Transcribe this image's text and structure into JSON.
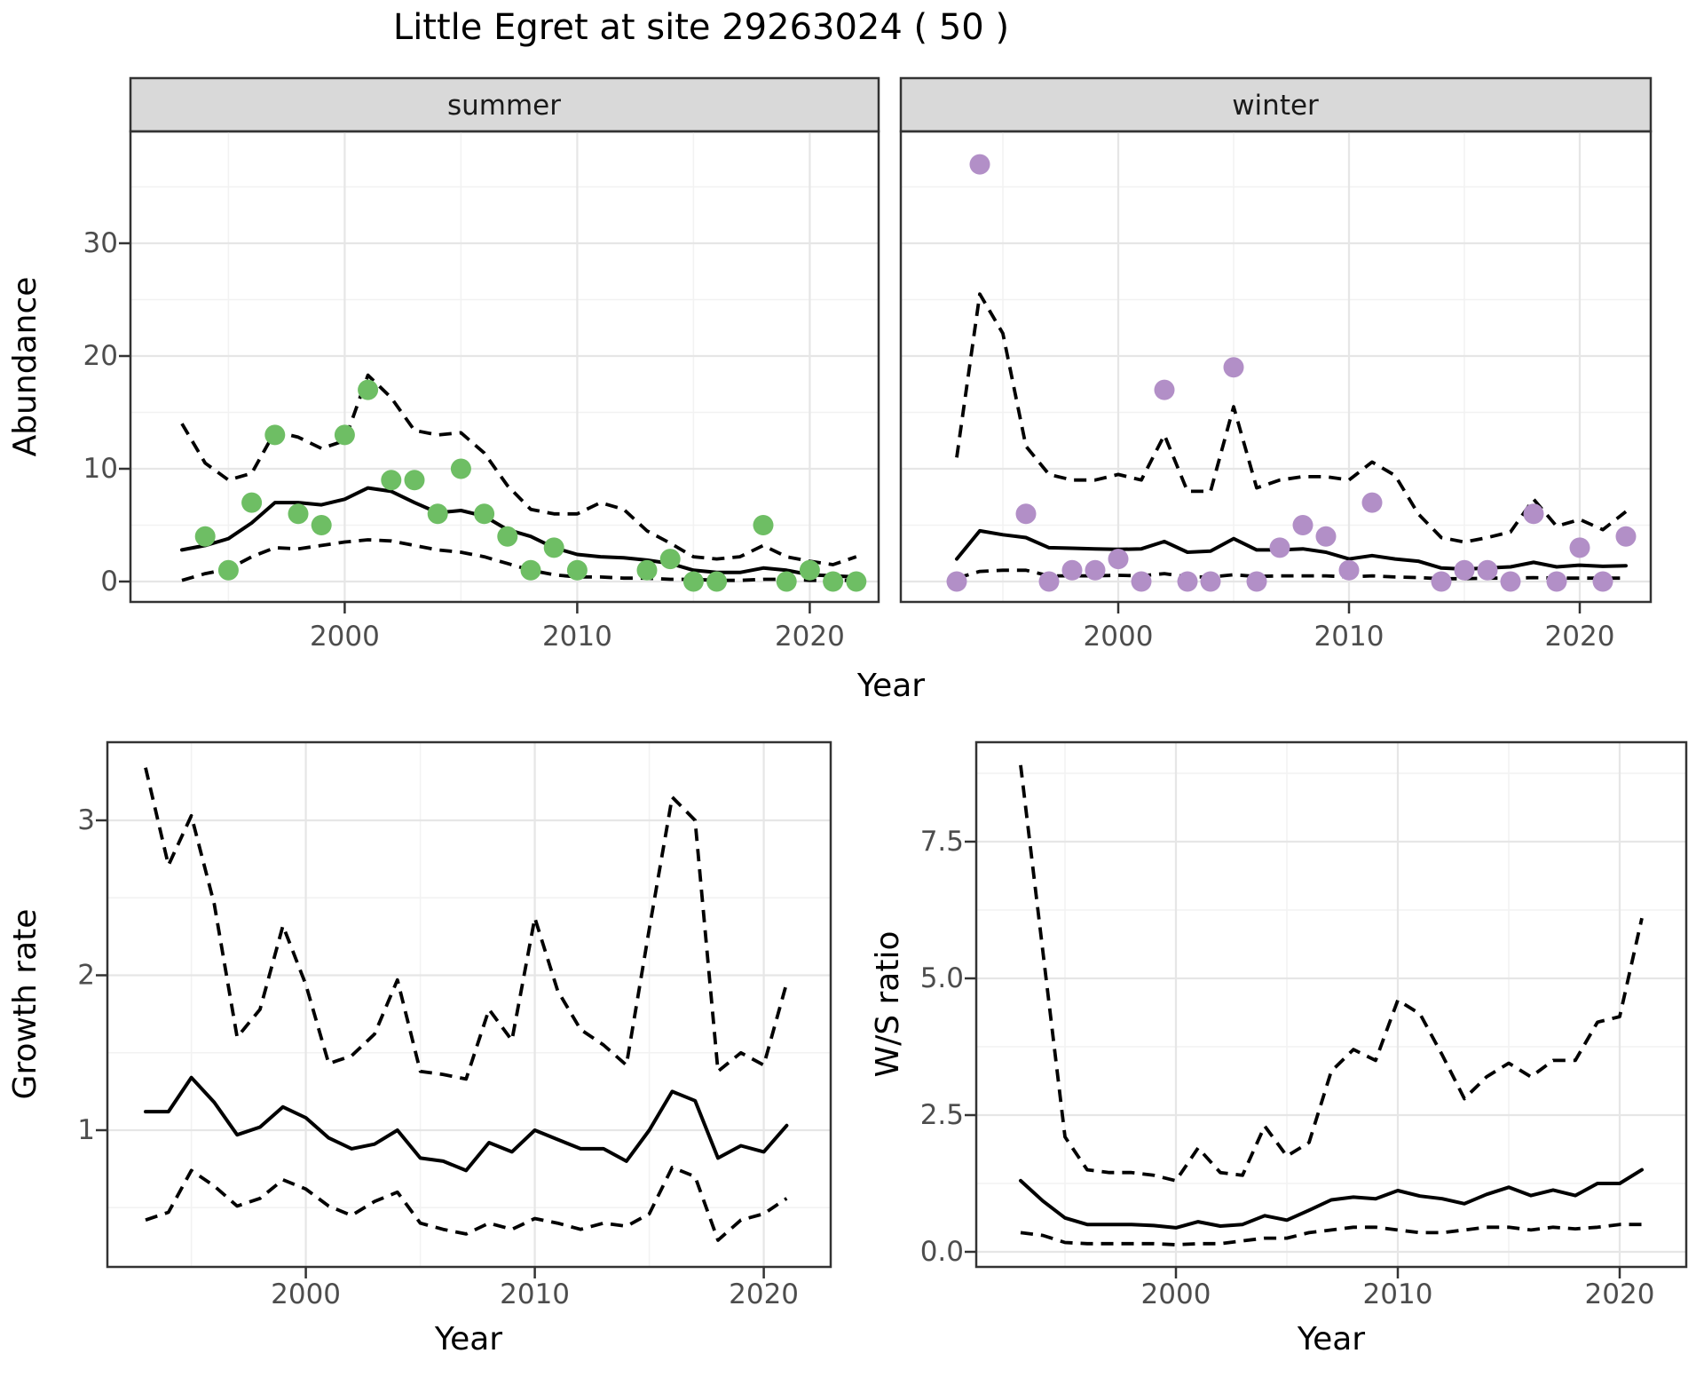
{
  "title": "Little Egret at site 29263024 ( 50 )",
  "colors": {
    "summer_point": "#6ebe64",
    "winter_point": "#b28fc7",
    "fit_line": "#000000",
    "ci_line": "#000000",
    "strip_bg": "#d9d9d9",
    "grid_major": "#e6e6e6",
    "grid_minor": "#f2f2f2",
    "panel_border": "#333333",
    "tick_label": "#4d4d4d"
  },
  "chart_data": [
    {
      "id": "abundance-summer",
      "type": "scatter",
      "facet_label": "summer",
      "xlabel": "Year",
      "ylabel": "Abundance",
      "x_ticks": [
        2000,
        2010,
        2020
      ],
      "x_minor": [
        1995,
        2005,
        2015
      ],
      "y_tick_values": [
        0,
        10,
        20,
        30
      ],
      "y_tick_labels": [
        "0",
        "10",
        "20",
        "30"
      ],
      "y_minor": [
        5,
        15,
        25,
        35
      ],
      "xlim": [
        1990.8,
        2023.0
      ],
      "ylim": [
        -1.8,
        39.9
      ],
      "grid": true,
      "legend": "none",
      "points": {
        "years": [
          1994,
          1995,
          1996,
          1997,
          1998,
          1999,
          2000,
          2001,
          2002,
          2003,
          2004,
          2005,
          2006,
          2007,
          2008,
          2009,
          2010,
          2013,
          2014,
          2015,
          2016,
          2018,
          2019,
          2020,
          2021,
          2022
        ],
        "values": [
          4,
          1,
          7,
          13,
          6,
          5,
          13,
          17,
          9,
          9,
          6,
          10,
          6,
          4,
          1,
          3,
          1,
          1,
          2,
          0,
          0,
          5,
          0,
          1,
          0,
          0
        ]
      },
      "series": [
        {
          "name": "fit",
          "style": "solid",
          "year_start": 1993,
          "values": [
            2.8,
            3.2,
            3.8,
            5.2,
            7.0,
            7.0,
            6.8,
            7.3,
            8.3,
            8.0,
            7.0,
            6.1,
            6.3,
            5.8,
            4.6,
            4.0,
            3.0,
            2.4,
            2.2,
            2.1,
            1.9,
            1.6,
            1.0,
            0.8,
            0.8,
            1.2,
            1.0,
            0.6,
            0.5,
            0.4
          ]
        },
        {
          "name": "upper-ci",
          "style": "dashed",
          "year_start": 1993,
          "values": [
            14.0,
            10.5,
            9.0,
            9.6,
            13.3,
            12.8,
            11.8,
            12.5,
            18.3,
            16.3,
            13.4,
            13.0,
            13.2,
            11.4,
            8.5,
            6.4,
            6.0,
            6.0,
            7.0,
            6.4,
            4.5,
            3.4,
            2.2,
            2.0,
            2.2,
            3.2,
            2.2,
            1.8,
            1.5,
            2.2
          ]
        },
        {
          "name": "lower-ci",
          "style": "dashed",
          "year_start": 1993,
          "values": [
            0.1,
            0.7,
            1.1,
            2.2,
            3.0,
            2.9,
            3.2,
            3.5,
            3.7,
            3.6,
            3.2,
            2.8,
            2.6,
            2.2,
            1.6,
            1.0,
            0.6,
            0.4,
            0.4,
            0.3,
            0.3,
            0.2,
            0.2,
            0.1,
            0.1,
            0.2,
            0.2,
            0.1,
            0.1,
            0.1
          ]
        }
      ]
    },
    {
      "id": "abundance-winter",
      "type": "scatter",
      "facet_label": "winter",
      "xlabel": "Year",
      "ylabel": "Abundance",
      "x_ticks": [
        2000,
        2010,
        2020
      ],
      "x_minor": [
        1995,
        2005,
        2015
      ],
      "y_tick_values": [
        0,
        10,
        20,
        30
      ],
      "y_tick_labels": [
        "0",
        "10",
        "20",
        "30"
      ],
      "y_minor": [
        5,
        15,
        25,
        35
      ],
      "xlim": [
        1990.6,
        2023.1
      ],
      "ylim": [
        -1.8,
        39.9
      ],
      "grid": true,
      "legend": "none",
      "points": {
        "years": [
          1993,
          1994,
          1996,
          1997,
          1998,
          1999,
          2000,
          2001,
          2002,
          2003,
          2004,
          2005,
          2006,
          2007,
          2008,
          2009,
          2010,
          2011,
          2014,
          2015,
          2016,
          2017,
          2018,
          2019,
          2020,
          2021,
          2022
        ],
        "values": [
          0,
          37,
          6,
          0,
          1,
          1,
          2,
          0,
          17,
          0,
          0,
          19,
          0,
          3,
          5,
          4,
          1,
          7,
          0,
          1,
          1,
          0,
          6,
          0,
          3,
          0,
          4
        ]
      },
      "series": [
        {
          "name": "fit",
          "style": "solid",
          "year_start": 1993,
          "values": [
            2.0,
            4.5,
            4.15,
            3.9,
            3.0,
            2.95,
            2.9,
            2.85,
            2.9,
            3.55,
            2.6,
            2.7,
            3.8,
            2.8,
            2.8,
            2.9,
            2.6,
            2.0,
            2.3,
            2.0,
            1.8,
            1.2,
            1.1,
            1.2,
            1.3,
            1.7,
            1.3,
            1.45,
            1.35,
            1.4
          ]
        },
        {
          "name": "upper-ci",
          "style": "dashed",
          "year_start": 1993,
          "values": [
            11.0,
            25.5,
            22.0,
            12.0,
            9.5,
            9.0,
            9.0,
            9.5,
            9.0,
            13.0,
            8.0,
            8.0,
            15.5,
            8.3,
            9.0,
            9.3,
            9.3,
            9.0,
            10.6,
            9.4,
            6.0,
            3.9,
            3.5,
            3.9,
            4.4,
            7.3,
            4.9,
            5.5,
            4.6,
            6.2
          ]
        },
        {
          "name": "lower-ci",
          "style": "dashed",
          "year_start": 1993,
          "values": [
            0.3,
            0.9,
            1.0,
            1.0,
            0.5,
            0.5,
            0.5,
            0.55,
            0.5,
            0.7,
            0.4,
            0.4,
            0.6,
            0.45,
            0.5,
            0.5,
            0.5,
            0.4,
            0.5,
            0.4,
            0.35,
            0.25,
            0.25,
            0.3,
            0.3,
            0.35,
            0.3,
            0.3,
            0.3,
            0.3
          ]
        }
      ]
    },
    {
      "id": "growth-rate",
      "type": "line",
      "facet_label": "",
      "xlabel": "Year",
      "ylabel": "Growth rate",
      "x_ticks": [
        2000,
        2010,
        2020
      ],
      "x_minor": [
        1995,
        2005,
        2015
      ],
      "y_tick_values": [
        1,
        2,
        3
      ],
      "y_tick_labels": [
        "1",
        "2",
        "3"
      ],
      "y_minor": [
        0.5,
        1.5,
        2.5,
        3.5
      ],
      "xlim": [
        1991.3,
        2022.9
      ],
      "ylim": [
        0.12,
        3.5
      ],
      "grid": true,
      "legend": "none",
      "series": [
        {
          "name": "fit",
          "style": "solid",
          "year_start": 1993,
          "values": [
            1.12,
            1.12,
            1.34,
            1.18,
            0.97,
            1.02,
            1.15,
            1.08,
            0.95,
            0.88,
            0.91,
            1.0,
            0.82,
            0.8,
            0.74,
            0.92,
            0.86,
            1.0,
            0.94,
            0.88,
            0.88,
            0.8,
            1.0,
            1.25,
            1.19,
            0.82,
            0.9,
            0.86,
            1.03
          ]
        },
        {
          "name": "upper-ci",
          "style": "dashed",
          "year_start": 1993,
          "values": [
            3.34,
            2.71,
            3.03,
            2.46,
            1.6,
            1.78,
            2.32,
            1.94,
            1.43,
            1.48,
            1.62,
            1.97,
            1.38,
            1.36,
            1.33,
            1.78,
            1.58,
            2.37,
            1.9,
            1.65,
            1.55,
            1.42,
            2.3,
            3.15,
            3.0,
            1.38,
            1.5,
            1.42,
            1.95
          ]
        },
        {
          "name": "lower-ci",
          "style": "dashed",
          "year_start": 1993,
          "values": [
            0.42,
            0.47,
            0.74,
            0.64,
            0.51,
            0.56,
            0.68,
            0.62,
            0.51,
            0.45,
            0.54,
            0.6,
            0.4,
            0.36,
            0.33,
            0.4,
            0.36,
            0.43,
            0.4,
            0.36,
            0.4,
            0.38,
            0.46,
            0.76,
            0.7,
            0.29,
            0.42,
            0.46,
            0.56
          ]
        }
      ]
    },
    {
      "id": "ws-ratio",
      "type": "line",
      "facet_label": "",
      "xlabel": "Year",
      "ylabel": "W/S ratio",
      "x_ticks": [
        2000,
        2010,
        2020
      ],
      "x_minor": [
        1995,
        2005,
        2015
      ],
      "y_tick_values": [
        0,
        2.5,
        5,
        7.5
      ],
      "y_tick_labels": [
        "0.0",
        "2.5",
        "5.0",
        "7.5"
      ],
      "y_minor": [
        1.25,
        3.75,
        6.25,
        8.75
      ],
      "xlim": [
        1991.0,
        2023.0
      ],
      "ylim": [
        -0.28,
        9.3
      ],
      "grid": true,
      "legend": "none",
      "series": [
        {
          "name": "fit",
          "style": "solid",
          "year_start": 1993,
          "values": [
            1.3,
            0.93,
            0.62,
            0.5,
            0.5,
            0.5,
            0.48,
            0.44,
            0.55,
            0.47,
            0.5,
            0.66,
            0.58,
            0.76,
            0.95,
            1.0,
            0.97,
            1.12,
            1.02,
            0.97,
            0.88,
            1.05,
            1.18,
            1.03,
            1.13,
            1.03,
            1.25,
            1.25,
            1.5
          ]
        },
        {
          "name": "upper-ci",
          "style": "dashed",
          "year_start": 1993,
          "values": [
            8.9,
            5.5,
            2.1,
            1.5,
            1.45,
            1.45,
            1.4,
            1.3,
            1.9,
            1.45,
            1.4,
            2.3,
            1.75,
            2.0,
            3.3,
            3.7,
            3.5,
            4.6,
            4.35,
            3.6,
            2.8,
            3.2,
            3.45,
            3.2,
            3.5,
            3.5,
            4.2,
            4.3,
            6.1
          ]
        },
        {
          "name": "lower-ci",
          "style": "dashed",
          "year_start": 1993,
          "values": [
            0.35,
            0.3,
            0.17,
            0.15,
            0.15,
            0.15,
            0.15,
            0.13,
            0.15,
            0.15,
            0.2,
            0.25,
            0.25,
            0.35,
            0.4,
            0.45,
            0.45,
            0.4,
            0.35,
            0.35,
            0.4,
            0.45,
            0.45,
            0.4,
            0.45,
            0.42,
            0.45,
            0.5,
            0.5
          ]
        }
      ]
    }
  ]
}
